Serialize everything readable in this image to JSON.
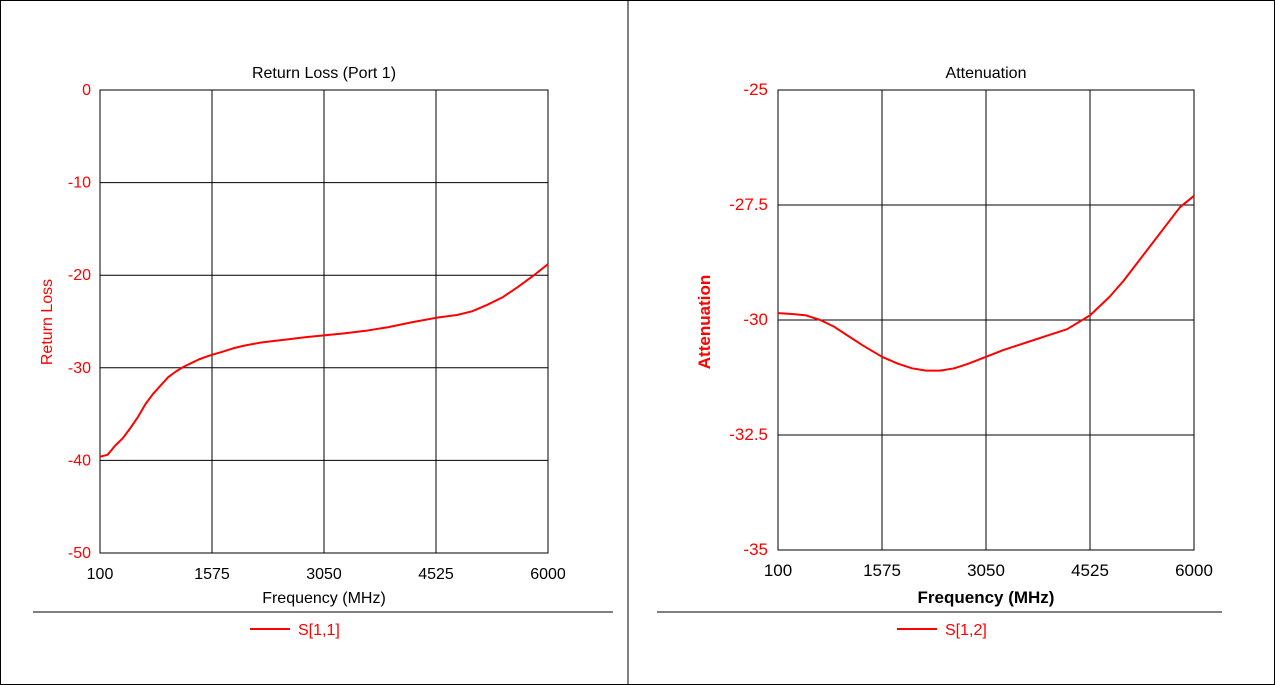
{
  "colors": {
    "series": "#ff0000",
    "axis_text": "#ff0000",
    "title_text": "#000000",
    "grid": "#000000",
    "border": "#000000"
  },
  "chart_data": [
    {
      "type": "line",
      "title": "Return Loss (Port 1)",
      "xlabel": "Frequency (MHz)",
      "ylabel": "Return Loss",
      "xlim": [
        100,
        6000
      ],
      "ylim": [
        -50,
        0
      ],
      "x_ticks": [
        "100",
        "1575",
        "3050",
        "4525",
        "6000"
      ],
      "y_ticks": [
        "0",
        "-10",
        "-20",
        "-30",
        "-40",
        "-50"
      ],
      "grid": true,
      "legend": "bottom-center",
      "series": [
        {
          "name": "S[1,1]",
          "color": "#ff0000",
          "x": [
            100,
            200,
            300,
            400,
            500,
            600,
            700,
            800,
            900,
            1000,
            1100,
            1200,
            1300,
            1400,
            1500,
            1575,
            1700,
            1850,
            2000,
            2200,
            2400,
            2600,
            2800,
            3050,
            3300,
            3600,
            3900,
            4200,
            4525,
            4800,
            5000,
            5200,
            5400,
            5600,
            5800,
            6000
          ],
          "values": [
            -39.6,
            -39.4,
            -38.4,
            -37.6,
            -36.5,
            -35.3,
            -33.9,
            -32.8,
            -31.9,
            -31.0,
            -30.4,
            -29.9,
            -29.5,
            -29.1,
            -28.8,
            -28.6,
            -28.3,
            -27.9,
            -27.6,
            -27.3,
            -27.1,
            -26.9,
            -26.7,
            -26.5,
            -26.3,
            -26.0,
            -25.6,
            -25.1,
            -24.6,
            -24.3,
            -23.9,
            -23.2,
            -22.4,
            -21.3,
            -20.1,
            -18.8
          ]
        }
      ]
    },
    {
      "type": "line",
      "title": "Attenuation",
      "xlabel": "Frequency (MHz)",
      "ylabel": "Attenuation",
      "xlim": [
        100,
        6000
      ],
      "ylim": [
        -35,
        -25
      ],
      "x_ticks": [
        "100",
        "1575",
        "3050",
        "4525",
        "6000"
      ],
      "y_ticks": [
        "-25",
        "-27.5",
        "-30",
        "-32.5",
        "-35"
      ],
      "grid": true,
      "legend": "bottom-center",
      "series": [
        {
          "name": "S[1,2]",
          "color": "#ff0000",
          "x": [
            100,
            300,
            500,
            700,
            900,
            1100,
            1300,
            1575,
            1800,
            2000,
            2200,
            2400,
            2600,
            2800,
            3050,
            3300,
            3600,
            3900,
            4200,
            4525,
            4800,
            5000,
            5200,
            5400,
            5600,
            5800,
            6000
          ],
          "values": [
            -29.85,
            -29.87,
            -29.9,
            -30.0,
            -30.15,
            -30.35,
            -30.55,
            -30.8,
            -30.95,
            -31.05,
            -31.1,
            -31.1,
            -31.05,
            -30.95,
            -30.8,
            -30.65,
            -30.5,
            -30.35,
            -30.2,
            -29.9,
            -29.5,
            -29.15,
            -28.75,
            -28.35,
            -27.95,
            -27.55,
            -27.3
          ]
        }
      ]
    }
  ]
}
